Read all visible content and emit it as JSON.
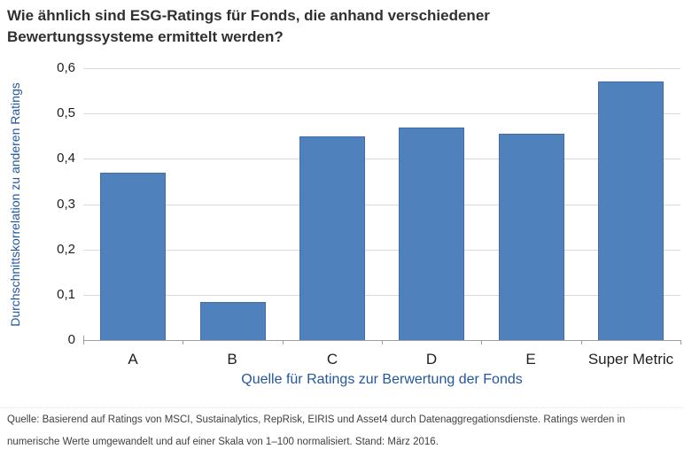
{
  "title": {
    "line1": "Wie ähnlich sind ESG-Ratings für Fonds, die anhand verschiedener",
    "line2": "Bewertungssysteme ermittelt werden?"
  },
  "chart_data": {
    "type": "bar",
    "title": "Wie ähnlich sind ESG-Ratings für Fonds, die anhand verschiedener Bewertungssysteme ermittelt werden?",
    "categories": [
      "A",
      "B",
      "C",
      "D",
      "E",
      "Super Metric"
    ],
    "values": [
      0.37,
      0.085,
      0.45,
      0.47,
      0.455,
      0.57
    ],
    "xlabel": "Quelle für Ratings zur Berwertung der Fonds",
    "ylabel": "Durchschnittskorrelation zu anderen Ratings",
    "ylim": [
      0,
      0.6
    ],
    "ytick_values": [
      0,
      0.1,
      0.2,
      0.3,
      0.4,
      0.5,
      0.6
    ],
    "ytick_labels": [
      "0",
      "0,1",
      "0,2",
      "0,3",
      "0,4",
      "0,5",
      "0,6"
    ],
    "grid": "horizontal",
    "legend": "none",
    "bar_color": "#4F81BD",
    "bar_border_color": "#3F6FA9",
    "gridline_color": "#D9D9D9",
    "axis_color": "#9E9E9E",
    "axis_label_color": "#22579F"
  },
  "footer": {
    "lines": [
      "Quelle: Basierend auf Ratings von MSCI, Sustainalytics, RepRisk, EIRIS und Asset4 durch Datenaggregationsdienste. Ratings werden in",
      "numerische Werte umgewandelt und auf einer Skala von 1–100 normalisiert. Stand: März 2016."
    ]
  }
}
